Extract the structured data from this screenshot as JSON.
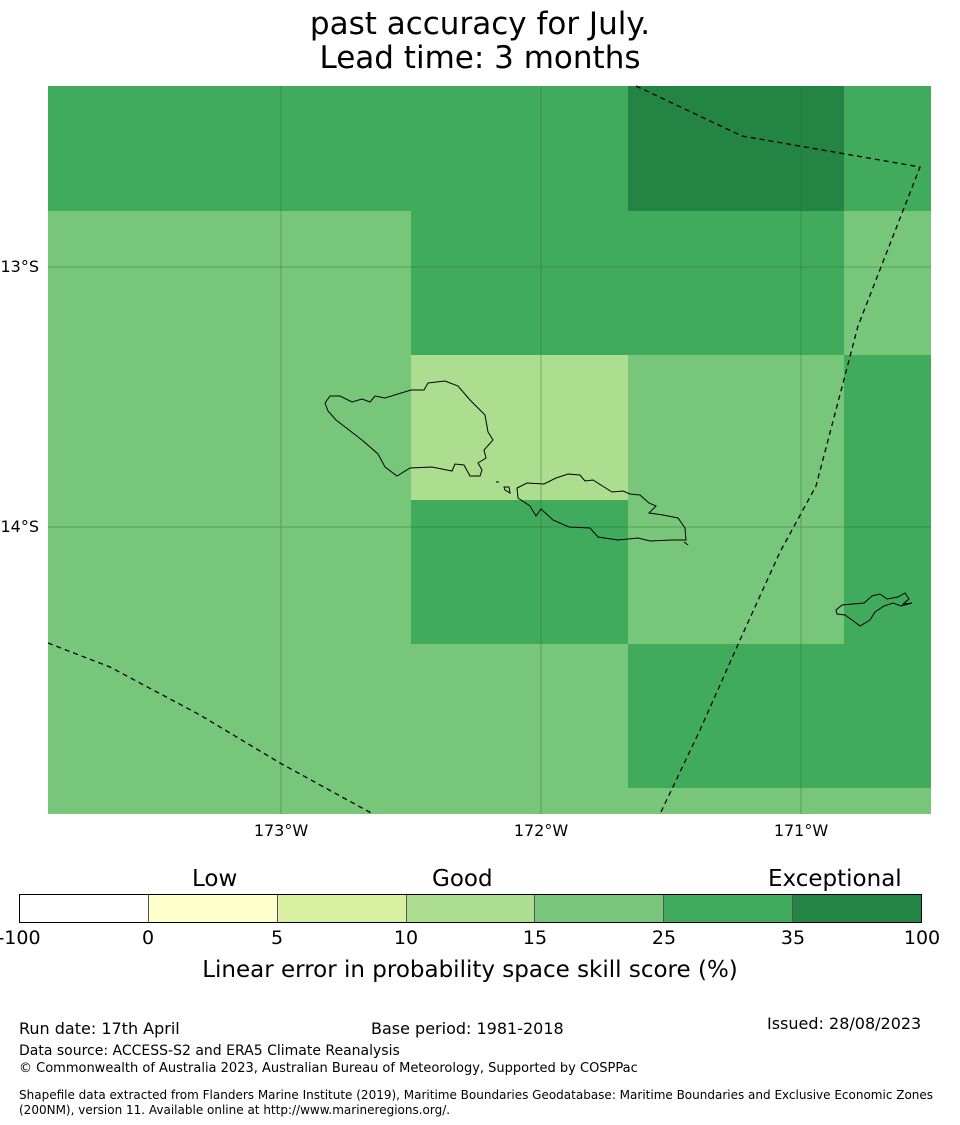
{
  "title": {
    "line1": "past accuracy for July.",
    "line2": "Lead time: 3 months"
  },
  "map": {
    "lat_labels": [
      "13°S",
      "14°S"
    ],
    "lon_labels": [
      "173°W",
      "172°W",
      "171°W"
    ],
    "skill_colors": {
      "band_15_25": "#78c679",
      "band_25_35": "#41ab5d",
      "band_35_100": "#238443",
      "band_10_15": "#addd8e"
    }
  },
  "colorbar": {
    "categories": [
      "Low",
      "Good",
      "Exceptional"
    ],
    "ticks": [
      "-100",
      "0",
      "5",
      "10",
      "15",
      "25",
      "35",
      "100"
    ],
    "colors": [
      "#ffffff",
      "#ffffcc",
      "#d9f0a3",
      "#addd8e",
      "#78c679",
      "#41ab5d",
      "#238443"
    ],
    "label": "Linear error in probability space skill score (%)"
  },
  "footer": {
    "run_date": "Run date: 17th April",
    "base_period": "Base period: 1981-2018",
    "issued": "Issued: 28/08/2023",
    "data_source": "Data source: ACCESS-S2 and ERA5 Climate Reanalysis",
    "copyright": "© Commonwealth of Australia 2023, Australian Bureau of Meteorology, Supported by COSPPac",
    "shapefile": "Shapefile data extracted from Flanders Marine Institute (2019), Maritime Boundaries Geodatabase: Maritime Boundaries and Exclusive Economic Zones (200NM), version 11. Available online at http://www.marineregions.org/."
  }
}
